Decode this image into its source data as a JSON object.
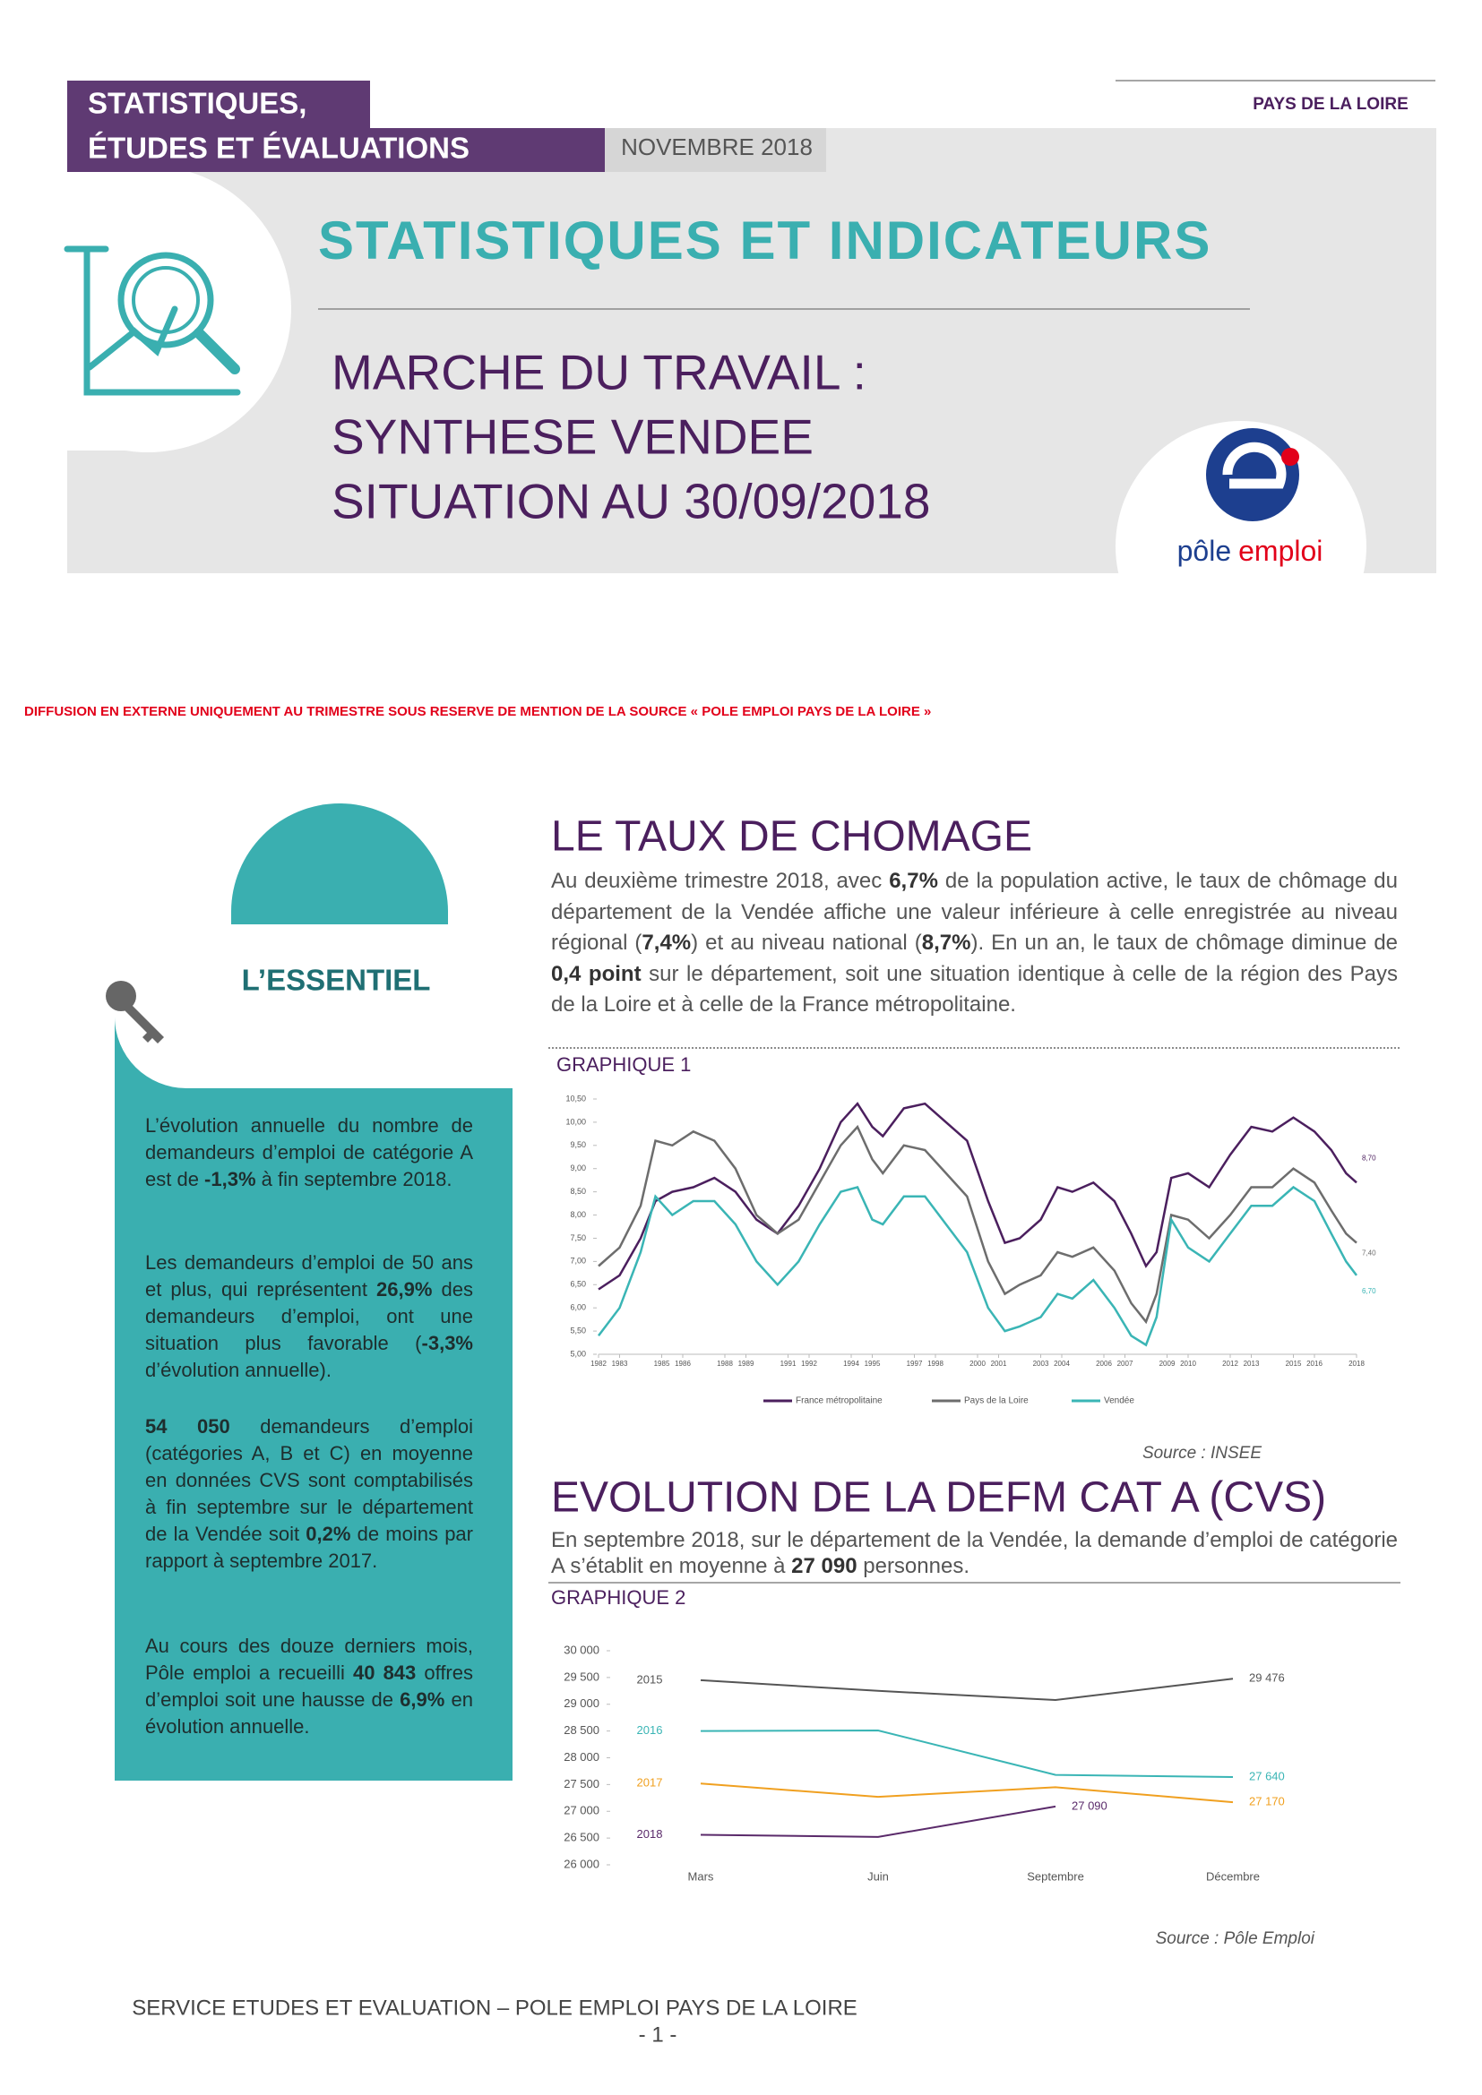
{
  "header": {
    "series_line1": "STATISTIQUES,",
    "series_line2": "ÉTUDES ET ÉVALUATIONS",
    "date": "NOVEMBRE 2018",
    "region": "PAYS DE LA LOIRE",
    "title": "STATISTIQUES ET INDICATEURS",
    "subtitle": [
      "MARCHE DU TRAVAIL :",
      "SYNTHESE VENDEE",
      "SITUATION AU 30/09/2018"
    ],
    "logo_text": [
      "pôle",
      "emploi"
    ]
  },
  "notice": "DIFFUSION EN EXTERNE UNIQUEMENT AU TRIMESTRE SOUS RESERVE DE MENTION DE LA SOURCE « POLE EMPLOI PAYS DE LA LOIRE »",
  "essentiel": {
    "title": "L’ESSENTIEL",
    "paragraphs": [
      [
        {
          "text": "L’évolution annuelle du nombre de demandeurs d’emploi de catégorie A est de ",
          "bold": false
        },
        {
          "text": "-1,3%",
          "bold": true
        },
        {
          "text": " à fin septembre 2018.",
          "bold": false
        }
      ],
      [
        {
          "text": "Les demandeurs d’emploi de 50 ans et plus, qui représentent ",
          "bold": false
        },
        {
          "text": "26,9%",
          "bold": true
        },
        {
          "text": " des demandeurs d’emploi, ont une situation plus favorable (",
          "bold": false
        },
        {
          "text": "-3,3%",
          "bold": true
        },
        {
          "text": " d’évolution annuelle).",
          "bold": false
        }
      ],
      [
        {
          "text": "54 050",
          "bold": true
        },
        {
          "text": " demandeurs d’emploi (catégories A, B et C) en moyenne en données CVS sont comptabilisés à fin septembre sur le département de la Vendée soit ",
          "bold": false
        },
        {
          "text": "0,2%",
          "bold": true
        },
        {
          "text": " de moins par rapport à septembre 2017.",
          "bold": false
        }
      ],
      [
        {
          "text": "Au cours des douze derniers mois, Pôle emploi a recueilli ",
          "bold": false
        },
        {
          "text": "40 843",
          "bold": true
        },
        {
          "text": " offres d’emploi soit une hausse de ",
          "bold": false
        },
        {
          "text": "6,9%",
          "bold": true
        },
        {
          "text": " en évolution annuelle.",
          "bold": false
        }
      ]
    ]
  },
  "sections": [
    {
      "title": "LE TAUX DE CHOMAGE",
      "text": [
        {
          "text": "Au deuxième trimestre 2018, avec ",
          "bold": false
        },
        {
          "text": "6,7%",
          "bold": true
        },
        {
          "text": " de la population active, le taux de chômage du département de la Vendée affiche une valeur inférieure à celle enregistrée au niveau régional (",
          "bold": false
        },
        {
          "text": "7,4%",
          "bold": true
        },
        {
          "text": ") et au niveau national (",
          "bold": false
        },
        {
          "text": "8,7%",
          "bold": true
        },
        {
          "text": "). En un an, le taux de chômage diminue de ",
          "bold": false
        },
        {
          "text": "0,4 point",
          "bold": true
        },
        {
          "text": " sur le département, soit une situation identique à celle de la région des Pays de la Loire et à celle de la France métropolitaine.",
          "bold": false
        }
      ],
      "figure": "GRAPHIQUE 1",
      "source": "Source : INSEE"
    },
    {
      "title": "EVOLUTION DE LA DEFM CAT A (CVS)",
      "text": [
        {
          "text": "En septembre 2018, sur le département de la Vendée, la demande d’emploi de catégorie A s’établit en moyenne à ",
          "bold": false
        },
        {
          "text": "27 090",
          "bold": true
        },
        {
          "text": " personnes.",
          "bold": false
        }
      ],
      "figure": "GRAPHIQUE 2",
      "source": "Source : Pôle Emploi"
    }
  ],
  "chart_data": [
    {
      "type": "line",
      "legend": "bottom",
      "x": [
        1982,
        1983,
        1984,
        1984.7,
        1985.5,
        1986.5,
        1987.5,
        1988.5,
        1989.5,
        1990.5,
        1991.5,
        1992.5,
        1993.5,
        1994.3,
        1995,
        1995.5,
        1996.5,
        1997.5,
        1998.5,
        1999.5,
        2000.5,
        2001.3,
        2002,
        2003,
        2003.8,
        2004.5,
        2005.5,
        2006.5,
        2007.3,
        2008,
        2008.5,
        2009.2,
        2010,
        2011,
        2012,
        2013,
        2014,
        2015,
        2016,
        2016.8,
        2017.5,
        2018
      ],
      "xlim": [
        1982,
        2018
      ],
      "xticks": [
        1982,
        1983,
        1985,
        1986,
        1988,
        1989,
        1991,
        1992,
        1994,
        1995,
        1997,
        1998,
        2000,
        2001,
        2003,
        2004,
        2006,
        2007,
        2009,
        2010,
        2012,
        2013,
        2015,
        2016,
        2018
      ],
      "ylim": [
        5,
        10.5
      ],
      "yticks": [
        {
          "value": 5,
          "label": "5,00"
        },
        {
          "value": 5.5,
          "label": "5,50"
        },
        {
          "value": 6,
          "label": "6,00"
        },
        {
          "value": 6.5,
          "label": "6,50"
        },
        {
          "value": 7,
          "label": "7,00"
        },
        {
          "value": 7.5,
          "label": "7,50"
        },
        {
          "value": 8,
          "label": "8,00"
        },
        {
          "value": 8.5,
          "label": "8,50"
        },
        {
          "value": 9,
          "label": "9,00"
        },
        {
          "value": 9.5,
          "label": "9,50"
        },
        {
          "value": 10,
          "label": "10,00"
        },
        {
          "value": 10.5,
          "label": "10,50"
        }
      ],
      "series": [
        {
          "name": "France métropolitaine",
          "color": "#4b1f5e",
          "values": [
            6.4,
            6.7,
            7.5,
            8.3,
            8.5,
            8.6,
            8.8,
            8.5,
            7.9,
            7.6,
            8.2,
            9.0,
            10.0,
            10.4,
            9.9,
            9.7,
            10.3,
            10.4,
            10.0,
            9.6,
            8.3,
            7.4,
            7.5,
            7.9,
            8.6,
            8.5,
            8.7,
            8.3,
            7.6,
            6.9,
            7.2,
            8.8,
            8.9,
            8.6,
            9.3,
            9.9,
            9.8,
            10.1,
            9.8,
            9.4,
            8.9,
            8.7
          ],
          "value_labels": [
            null,
            null,
            null,
            null,
            null,
            null,
            null,
            null,
            null,
            null,
            null,
            null,
            null,
            null,
            null,
            null,
            null,
            null,
            null,
            null,
            null,
            null,
            null,
            null,
            null,
            null,
            null,
            null,
            null,
            null,
            null,
            null,
            null,
            null,
            null,
            null,
            null,
            null,
            null,
            null,
            null,
            "8,70"
          ]
        },
        {
          "name": "Pays de la Loire",
          "color": "#6d6d6d",
          "values": [
            6.9,
            7.3,
            8.2,
            9.6,
            9.5,
            9.8,
            9.6,
            9.0,
            8.0,
            7.6,
            7.9,
            8.7,
            9.5,
            9.9,
            9.2,
            8.9,
            9.5,
            9.4,
            8.9,
            8.4,
            7.0,
            6.3,
            6.5,
            6.7,
            7.2,
            7.1,
            7.3,
            6.8,
            6.1,
            5.7,
            6.3,
            8.0,
            7.9,
            7.5,
            8.0,
            8.6,
            8.6,
            9.0,
            8.7,
            8.1,
            7.6,
            7.4
          ],
          "value_labels": [
            null,
            null,
            null,
            null,
            null,
            null,
            null,
            null,
            null,
            null,
            null,
            null,
            null,
            null,
            null,
            null,
            null,
            null,
            null,
            null,
            null,
            null,
            null,
            null,
            null,
            null,
            null,
            null,
            null,
            null,
            null,
            null,
            null,
            null,
            null,
            null,
            null,
            null,
            null,
            null,
            null,
            "7,40"
          ]
        },
        {
          "name": "Vendée",
          "color": "#3ab5b5",
          "values": [
            5.4,
            6.0,
            7.2,
            8.4,
            8.0,
            8.3,
            8.3,
            7.8,
            7.0,
            6.5,
            7.0,
            7.8,
            8.5,
            8.6,
            7.9,
            7.8,
            8.4,
            8.4,
            7.8,
            7.2,
            6.0,
            5.5,
            5.6,
            5.8,
            6.3,
            6.2,
            6.6,
            6.0,
            5.4,
            5.2,
            5.8,
            7.9,
            7.3,
            7.0,
            7.6,
            8.2,
            8.2,
            8.6,
            8.3,
            7.6,
            7.0,
            6.7
          ],
          "value_labels": [
            null,
            null,
            null,
            null,
            null,
            null,
            null,
            null,
            null,
            null,
            null,
            null,
            null,
            null,
            null,
            null,
            null,
            null,
            null,
            null,
            null,
            null,
            null,
            null,
            null,
            null,
            null,
            null,
            null,
            null,
            null,
            null,
            null,
            null,
            null,
            null,
            null,
            null,
            null,
            null,
            null,
            "6,70"
          ]
        }
      ]
    },
    {
      "type": "line",
      "legend": "inline",
      "categories": [
        "Mars",
        "Juin",
        "Septembre",
        "Décembre"
      ],
      "ylim": [
        26000,
        30000
      ],
      "yticks": [
        {
          "value": 26000,
          "label": "26 000"
        },
        {
          "value": 26500,
          "label": "26 500"
        },
        {
          "value": 27000,
          "label": "27 000"
        },
        {
          "value": 27500,
          "label": "27 500"
        },
        {
          "value": 28000,
          "label": "28 000"
        },
        {
          "value": 28500,
          "label": "28 500"
        },
        {
          "value": 29000,
          "label": "29 000"
        },
        {
          "value": 29500,
          "label": "29 500"
        },
        {
          "value": 30000,
          "label": "30 000"
        }
      ],
      "series": [
        {
          "name": "2015",
          "color": "#555555",
          "values": [
            29450,
            29250,
            29080,
            29476
          ],
          "value_labels": [
            null,
            null,
            null,
            "29 476"
          ]
        },
        {
          "name": "2016",
          "color": "#3ab5b5",
          "values": [
            28500,
            28510,
            27680,
            27640
          ],
          "value_labels": [
            null,
            null,
            null,
            "27 640"
          ]
        },
        {
          "name": "2017",
          "color": "#f0a020",
          "values": [
            27520,
            27270,
            27450,
            27170
          ],
          "value_labels": [
            null,
            null,
            null,
            "27 170"
          ]
        },
        {
          "name": "2018",
          "color": "#5a2a6a",
          "values": [
            26560,
            26520,
            27090,
            null
          ],
          "value_labels": [
            null,
            null,
            "27 090",
            null
          ]
        }
      ]
    }
  ],
  "footer": {
    "service": "SERVICE ETUDES ET EVALUATION – POLE EMPLOI PAYS DE LA LOIRE",
    "page": "- 1 -"
  }
}
